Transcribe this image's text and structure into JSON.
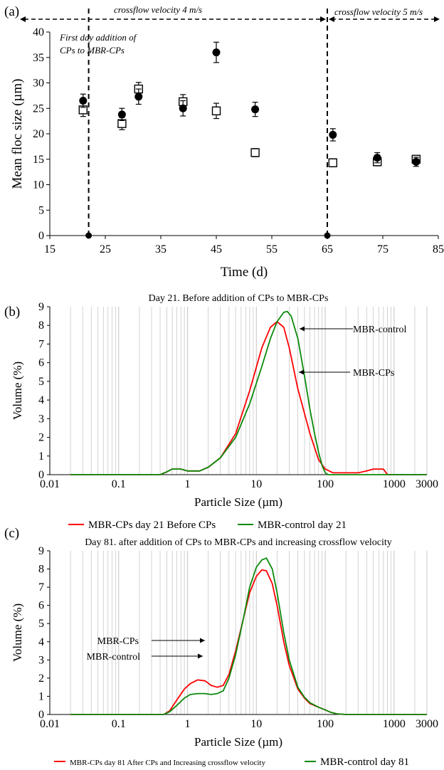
{
  "colors": {
    "red": "#ff0000",
    "green": "#0b8a0b",
    "black": "#000000",
    "grid": "#c8c8c8"
  },
  "chart_data": [
    {
      "panel_label": "(a)",
      "type": "scatter",
      "xlabel": "Time (d)",
      "ylabel": "Mean floc size (µm)",
      "xlim": [
        15,
        85
      ],
      "ylim": [
        0,
        40
      ],
      "xticks": [
        "15",
        "25",
        "35",
        "45",
        "55",
        "65",
        "75",
        "85"
      ],
      "yticks": [
        "0",
        "5",
        "10",
        "15",
        "20",
        "25",
        "30",
        "35",
        "40"
      ],
      "annotations": {
        "crossflow_1": "crossflow velocity 4 m/s",
        "crossflow_2": "crossflow velocity 5 m/s",
        "first_day_1": "First day addition of",
        "first_day_2": "CPs to MBR-CPs"
      },
      "vlines": [
        22,
        65
      ],
      "series": [
        {
          "marker": "filled-circle",
          "x": [
            21,
            28,
            31,
            39,
            45,
            52,
            66,
            74,
            81
          ],
          "y": [
            26.5,
            23.8,
            27.3,
            25.0,
            36.0,
            24.8,
            19.8,
            15.3,
            14.5
          ],
          "err": [
            1.3,
            1.2,
            1.5,
            1.5,
            2.0,
            1.4,
            1.2,
            1.0,
            0.9
          ]
        },
        {
          "marker": "open-square",
          "x": [
            21,
            28,
            31,
            39,
            45,
            52,
            66,
            74,
            81
          ],
          "y": [
            24.7,
            22.0,
            28.8,
            26.3,
            24.5,
            16.3,
            14.3,
            14.5,
            15.0
          ],
          "err": [
            1.3,
            1.2,
            1.3,
            1.4,
            1.5,
            0.8,
            0.8,
            0.8,
            0.7
          ]
        },
        {
          "marker": "filled-circle-axis",
          "x": [
            22,
            65
          ],
          "y": [
            0,
            0
          ]
        }
      ]
    },
    {
      "panel_label": "(b)",
      "type": "line",
      "title": "Day 21. Before addition of CPs to MBR-CPs",
      "xlabel": "Particle Size (µm)",
      "ylabel": "Volume (%)",
      "xscale": "log",
      "xlim": [
        0.01,
        3000
      ],
      "ylim": [
        0,
        9
      ],
      "xticks": [
        "0.01",
        "0.1",
        "1",
        "10",
        "100",
        "1000",
        "3000"
      ],
      "yticks": [
        "0",
        "1",
        "2",
        "3",
        "4",
        "5",
        "6",
        "7",
        "8",
        "9"
      ],
      "callouts": [
        "MBR-control",
        "MBR-CPs"
      ],
      "legend": [
        "MBR-CPs day 21 Before CPs",
        "MBR-control day 21"
      ],
      "series": [
        {
          "name": "MBR-CPs day 21 Before CPs",
          "x": [
            0.02,
            0.4,
            0.5,
            0.6,
            0.8,
            1,
            1.5,
            2,
            3,
            5,
            8,
            12,
            16,
            20,
            25,
            30,
            40,
            60,
            80,
            100,
            130,
            200,
            300,
            400,
            500,
            600,
            700,
            800,
            1000,
            3000
          ],
          "y": [
            0,
            0,
            0.15,
            0.3,
            0.3,
            0.2,
            0.2,
            0.4,
            0.9,
            2.2,
            4.5,
            6.8,
            7.9,
            8.2,
            7.9,
            6.8,
            4.6,
            2.2,
            0.8,
            0.3,
            0.1,
            0.1,
            0.1,
            0.2,
            0.3,
            0.3,
            0.3,
            0,
            0,
            0
          ]
        },
        {
          "name": "MBR-control day 21",
          "x": [
            0.02,
            0.4,
            0.5,
            0.6,
            0.8,
            1,
            1.5,
            2,
            3,
            5,
            8,
            12,
            16,
            20,
            25,
            28,
            32,
            40,
            50,
            60,
            70,
            80,
            90,
            100,
            110,
            3000
          ],
          "y": [
            0,
            0,
            0.15,
            0.3,
            0.3,
            0.2,
            0.2,
            0.4,
            0.9,
            2.0,
            3.8,
            5.8,
            7.3,
            8.2,
            8.7,
            8.75,
            8.5,
            7.3,
            5.3,
            3.5,
            2.2,
            1.2,
            0.5,
            0.1,
            0,
            0
          ]
        }
      ]
    },
    {
      "panel_label": "(c)",
      "type": "line",
      "title": "Day 81. after addition of CPs to MBR-CPs and increasing crossflow velocity",
      "xlabel": "Particle Size (µm)",
      "ylabel": "Volume (%)",
      "xscale": "log",
      "xlim": [
        0.01,
        3000
      ],
      "ylim": [
        0,
        9
      ],
      "xticks": [
        "0.01",
        "0.1",
        "1",
        "10",
        "100",
        "1000",
        "3000"
      ],
      "yticks": [
        "0",
        "1",
        "2",
        "3",
        "4",
        "5",
        "6",
        "7",
        "8",
        "9"
      ],
      "callouts": [
        "MBR-CPs",
        "MBR-control"
      ],
      "legend": [
        "MBR-CPs day 81 After CPs and Increasing crossflow velocity",
        "MBR-control day 81"
      ],
      "series": [
        {
          "name": "MBR-CPs day 81 After CPs and Increasing crossflow velocity",
          "x": [
            0.02,
            0.45,
            0.55,
            0.7,
            0.9,
            1.1,
            1.4,
            1.8,
            2.2,
            2.7,
            3.3,
            4,
            5,
            6.5,
            8,
            10,
            12,
            14,
            17,
            20,
            25,
            30,
            40,
            50,
            60,
            80,
            100,
            120,
            150,
            200,
            3000
          ],
          "y": [
            0,
            0,
            0.2,
            0.8,
            1.4,
            1.7,
            1.9,
            1.85,
            1.6,
            1.5,
            1.6,
            2.2,
            3.5,
            5.3,
            6.7,
            7.6,
            7.95,
            7.9,
            7.2,
            6.0,
            4.0,
            2.7,
            1.4,
            0.9,
            0.6,
            0.4,
            0.25,
            0.12,
            0.03,
            0,
            0
          ]
        },
        {
          "name": "MBR-control day 81",
          "x": [
            0.02,
            0.45,
            0.55,
            0.7,
            0.9,
            1.1,
            1.4,
            1.8,
            2.2,
            2.7,
            3.3,
            4,
            5,
            6.5,
            8,
            10,
            12,
            14,
            17,
            20,
            25,
            30,
            40,
            50,
            60,
            80,
            100,
            120,
            150,
            200,
            3000
          ],
          "y": [
            0,
            0,
            0.15,
            0.5,
            0.9,
            1.1,
            1.15,
            1.15,
            1.1,
            1.15,
            1.3,
            2.0,
            3.3,
            5.3,
            7.0,
            8.1,
            8.5,
            8.6,
            8.0,
            6.7,
            4.5,
            3.0,
            1.5,
            0.95,
            0.65,
            0.4,
            0.25,
            0.12,
            0.03,
            0,
            0
          ]
        }
      ]
    }
  ]
}
